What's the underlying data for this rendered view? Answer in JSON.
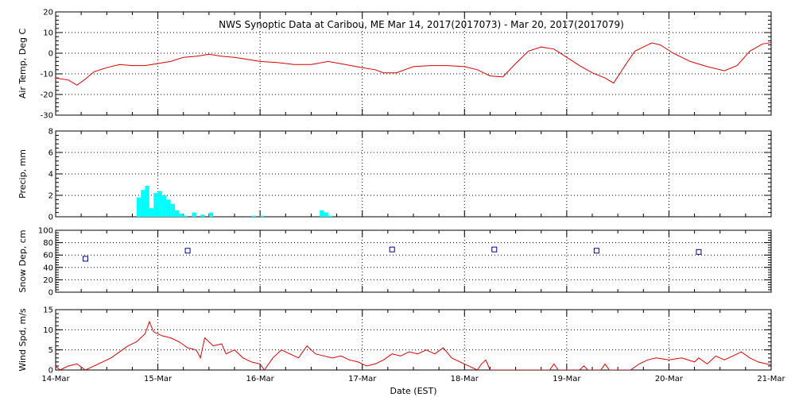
{
  "chart_data": {
    "type": "multi-panel",
    "title": "NWS Synoptic Data at Caribou, ME   Mar 14, 2017(2017073) - Mar 20, 2017(2017079)",
    "xlabel": "Date (EST)",
    "x_range": [
      "2017-03-14",
      "2017-03-21"
    ],
    "x_tick_labels": [
      "14-Mar",
      "15-Mar",
      "16-Mar",
      "17-Mar",
      "18-Mar",
      "19-Mar",
      "20-Mar",
      "21-Mar"
    ],
    "grid": true,
    "panels": [
      {
        "type": "line",
        "ylabel": "Air Temp, Deg C",
        "ylim": [
          -30,
          20
        ],
        "y_ticks": [
          -30,
          -20,
          -10,
          0,
          10,
          20
        ],
        "color": "#dd0000",
        "points": [
          [
            "2017-03-14T00:00",
            -12
          ],
          [
            "2017-03-14T03:00",
            -13
          ],
          [
            "2017-03-14T05:00",
            -15.5
          ],
          [
            "2017-03-14T07:00",
            -12.5
          ],
          [
            "2017-03-14T09:00",
            -9
          ],
          [
            "2017-03-14T12:00",
            -7
          ],
          [
            "2017-03-14T15:00",
            -5.5
          ],
          [
            "2017-03-14T18:00",
            -6
          ],
          [
            "2017-03-14T21:00",
            -6
          ],
          [
            "2017-03-15T00:00",
            -5
          ],
          [
            "2017-03-15T03:00",
            -4
          ],
          [
            "2017-03-15T06:00",
            -2
          ],
          [
            "2017-03-15T09:00",
            -1.5
          ],
          [
            "2017-03-15T12:00",
            -0.5
          ],
          [
            "2017-03-15T15:00",
            -1.5
          ],
          [
            "2017-03-15T18:00",
            -2
          ],
          [
            "2017-03-15T21:00",
            -3
          ],
          [
            "2017-03-16T00:00",
            -4
          ],
          [
            "2017-03-16T04:00",
            -4.5
          ],
          [
            "2017-03-16T08:00",
            -5.5
          ],
          [
            "2017-03-16T12:00",
            -5.5
          ],
          [
            "2017-03-16T16:00",
            -4
          ],
          [
            "2017-03-16T20:00",
            -5.5
          ],
          [
            "2017-03-17T00:00",
            -7
          ],
          [
            "2017-03-17T03:00",
            -8
          ],
          [
            "2017-03-17T05:00",
            -9.5
          ],
          [
            "2017-03-17T08:00",
            -9.5
          ],
          [
            "2017-03-17T12:00",
            -6.5
          ],
          [
            "2017-03-17T16:00",
            -6
          ],
          [
            "2017-03-17T20:00",
            -6
          ],
          [
            "2017-03-18T00:00",
            -6.5
          ],
          [
            "2017-03-18T03:00",
            -8
          ],
          [
            "2017-03-18T06:00",
            -11
          ],
          [
            "2017-03-18T09:00",
            -11.5
          ],
          [
            "2017-03-18T12:00",
            -5
          ],
          [
            "2017-03-18T15:00",
            1
          ],
          [
            "2017-03-18T18:00",
            3
          ],
          [
            "2017-03-18T21:00",
            2
          ],
          [
            "2017-03-19T00:00",
            -2
          ],
          [
            "2017-03-19T03:00",
            -6
          ],
          [
            "2017-03-19T06:00",
            -9.5
          ],
          [
            "2017-03-19T09:00",
            -12
          ],
          [
            "2017-03-19T11:00",
            -14.5
          ],
          [
            "2017-03-19T14:00",
            -5
          ],
          [
            "2017-03-19T16:00",
            1
          ],
          [
            "2017-03-19T18:00",
            3
          ],
          [
            "2017-03-19T20:00",
            5
          ],
          [
            "2017-03-19T22:00",
            4
          ],
          [
            "2017-03-20T01:00",
            0
          ],
          [
            "2017-03-20T05:00",
            -4
          ],
          [
            "2017-03-20T09:00",
            -6.5
          ],
          [
            "2017-03-20T13:00",
            -8.5
          ],
          [
            "2017-03-20T16:00",
            -6
          ],
          [
            "2017-03-20T19:00",
            1
          ],
          [
            "2017-03-20T22:00",
            4.5
          ],
          [
            "2017-03-21T01:00",
            5.5
          ],
          [
            "2017-03-21T04:00",
            3
          ],
          [
            "2017-03-21T07:00",
            2
          ],
          [
            "2017-03-21T10:00",
            1
          ],
          [
            "2017-03-21T12:00",
            0
          ]
        ]
      },
      {
        "type": "bar",
        "ylabel": "Precip, mm",
        "ylim": [
          0,
          8
        ],
        "y_ticks": [
          0,
          2,
          4,
          6,
          8
        ],
        "color": "#00ffff",
        "points": [
          [
            "2017-03-14T19:00",
            1.8
          ],
          [
            "2017-03-14T20:00",
            2.5
          ],
          [
            "2017-03-14T21:00",
            2.9
          ],
          [
            "2017-03-14T22:00",
            0.8
          ],
          [
            "2017-03-14T23:00",
            2.2
          ],
          [
            "2017-03-15T00:00",
            2.4
          ],
          [
            "2017-03-15T01:00",
            2.0
          ],
          [
            "2017-03-15T02:00",
            1.6
          ],
          [
            "2017-03-15T03:00",
            1.2
          ],
          [
            "2017-03-15T04:00",
            0.6
          ],
          [
            "2017-03-15T05:00",
            0.3
          ],
          [
            "2017-03-15T06:00",
            0.1
          ],
          [
            "2017-03-15T08:00",
            0.4
          ],
          [
            "2017-03-15T10:00",
            0.2
          ],
          [
            "2017-03-15T12:00",
            0.4
          ],
          [
            "2017-03-15T22:00",
            0.1
          ],
          [
            "2017-03-16T00:00",
            0.1
          ],
          [
            "2017-03-16T14:00",
            0.6
          ],
          [
            "2017-03-16T15:00",
            0.4
          ],
          [
            "2017-03-16T16:00",
            0.1
          ]
        ]
      },
      {
        "type": "scatter",
        "ylabel": "Snow Dep, cm",
        "ylim": [
          0,
          100
        ],
        "y_ticks": [
          0,
          20,
          40,
          60,
          80,
          100
        ],
        "color": "#000088",
        "points": [
          [
            "2017-03-14T07:00",
            54
          ],
          [
            "2017-03-15T07:00",
            67
          ],
          [
            "2017-03-17T07:00",
            69
          ],
          [
            "2017-03-18T07:00",
            69
          ],
          [
            "2017-03-19T07:00",
            67
          ],
          [
            "2017-03-20T07:00",
            65
          ]
        ]
      },
      {
        "type": "line",
        "ylabel": "Wind Spd, m/s",
        "ylim": [
          0,
          15
        ],
        "y_ticks": [
          0,
          5,
          10,
          15
        ],
        "color": "#dd0000",
        "points": [
          [
            "2017-03-14T00:00",
            1.0
          ],
          [
            "2017-03-14T01:00",
            0.0
          ],
          [
            "2017-03-14T03:00",
            1.0
          ],
          [
            "2017-03-14T05:00",
            1.5
          ],
          [
            "2017-03-14T07:00",
            0.0
          ],
          [
            "2017-03-14T09:00",
            1.0
          ],
          [
            "2017-03-14T11:00",
            2.0
          ],
          [
            "2017-03-14T13:00",
            3.0
          ],
          [
            "2017-03-14T15:00",
            4.5
          ],
          [
            "2017-03-14T17:00",
            6.0
          ],
          [
            "2017-03-14T19:00",
            7.0
          ],
          [
            "2017-03-14T21:00",
            9.0
          ],
          [
            "2017-03-14T22:00",
            12.0
          ],
          [
            "2017-03-14T23:00",
            9.5
          ],
          [
            "2017-03-15T01:00",
            8.5
          ],
          [
            "2017-03-15T03:00",
            8.0
          ],
          [
            "2017-03-15T05:00",
            7.0
          ],
          [
            "2017-03-15T07:00",
            5.5
          ],
          [
            "2017-03-15T09:00",
            5.0
          ],
          [
            "2017-03-15T10:00",
            3.0
          ],
          [
            "2017-03-15T11:00",
            8.0
          ],
          [
            "2017-03-15T13:00",
            6.0
          ],
          [
            "2017-03-15T15:00",
            6.5
          ],
          [
            "2017-03-15T16:00",
            4.0
          ],
          [
            "2017-03-15T18:00",
            5.0
          ],
          [
            "2017-03-15T20:00",
            3.0
          ],
          [
            "2017-03-15T22:00",
            2.0
          ],
          [
            "2017-03-16T00:00",
            1.5
          ],
          [
            "2017-03-16T01:00",
            0.0
          ],
          [
            "2017-03-16T03:00",
            3.0
          ],
          [
            "2017-03-16T05:00",
            5.0
          ],
          [
            "2017-03-16T07:00",
            4.0
          ],
          [
            "2017-03-16T09:00",
            3.0
          ],
          [
            "2017-03-16T11:00",
            6.0
          ],
          [
            "2017-03-16T13:00",
            4.0
          ],
          [
            "2017-03-16T15:00",
            3.5
          ],
          [
            "2017-03-16T17:00",
            3.0
          ],
          [
            "2017-03-16T19:00",
            3.5
          ],
          [
            "2017-03-16T21:00",
            2.5
          ],
          [
            "2017-03-16T23:00",
            2.0
          ],
          [
            "2017-03-17T01:00",
            1.0
          ],
          [
            "2017-03-17T03:00",
            1.5
          ],
          [
            "2017-03-17T05:00",
            2.5
          ],
          [
            "2017-03-17T07:00",
            4.0
          ],
          [
            "2017-03-17T09:00",
            3.5
          ],
          [
            "2017-03-17T11:00",
            4.5
          ],
          [
            "2017-03-17T13:00",
            4.0
          ],
          [
            "2017-03-17T15:00",
            5.0
          ],
          [
            "2017-03-17T17:00",
            4.0
          ],
          [
            "2017-03-17T19:00",
            5.5
          ],
          [
            "2017-03-17T21:00",
            3.0
          ],
          [
            "2017-03-17T23:00",
            2.0
          ],
          [
            "2017-03-18T01:00",
            1.0
          ],
          [
            "2017-03-18T03:00",
            0.0
          ],
          [
            "2017-03-18T04:00",
            1.5
          ],
          [
            "2017-03-18T05:00",
            2.5
          ],
          [
            "2017-03-18T06:00",
            0.0
          ],
          [
            "2017-03-18T20:00",
            0.0
          ],
          [
            "2017-03-18T21:00",
            1.5
          ],
          [
            "2017-03-18T22:00",
            0.0
          ],
          [
            "2017-03-19T03:00",
            0.0
          ],
          [
            "2017-03-19T04:00",
            1.0
          ],
          [
            "2017-03-19T05:00",
            0.0
          ],
          [
            "2017-03-19T08:00",
            0.0
          ],
          [
            "2017-03-19T09:00",
            1.5
          ],
          [
            "2017-03-19T10:00",
            0.0
          ],
          [
            "2017-03-19T15:00",
            0.0
          ],
          [
            "2017-03-19T17:00",
            1.5
          ],
          [
            "2017-03-19T19:00",
            2.5
          ],
          [
            "2017-03-19T21:00",
            3.0
          ],
          [
            "2017-03-20T00:00",
            2.5
          ],
          [
            "2017-03-20T03:00",
            3.0
          ],
          [
            "2017-03-20T06:00",
            2.0
          ],
          [
            "2017-03-20T07:00",
            3.0
          ],
          [
            "2017-03-20T09:00",
            1.5
          ],
          [
            "2017-03-20T11:00",
            3.5
          ],
          [
            "2017-03-20T13:00",
            2.5
          ],
          [
            "2017-03-20T15:00",
            3.5
          ],
          [
            "2017-03-20T17:00",
            4.5
          ],
          [
            "2017-03-20T19:00",
            3.0
          ],
          [
            "2017-03-20T21:00",
            2.0
          ],
          [
            "2017-03-20T23:00",
            1.5
          ],
          [
            "2017-03-21T01:00",
            1.0
          ],
          [
            "2017-03-21T03:00",
            1.5
          ],
          [
            "2017-03-21T05:00",
            0.5
          ],
          [
            "2017-03-21T07:00",
            0.0
          ],
          [
            "2017-03-21T09:00",
            1.5
          ],
          [
            "2017-03-21T11:00",
            1.0
          ],
          [
            "2017-03-21T12:00",
            0.5
          ]
        ]
      }
    ]
  }
}
